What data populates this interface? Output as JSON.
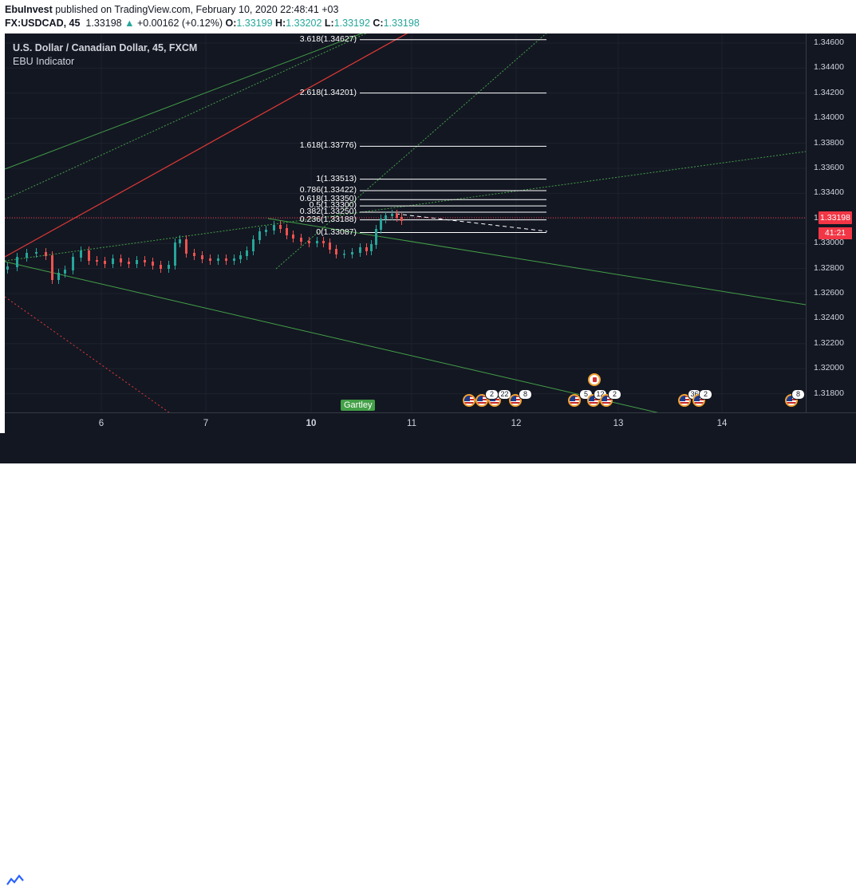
{
  "header": {
    "author": "EbuInvest",
    "published_text": "published on TradingView.com, February 10, 2020 22:48:41 +03",
    "symbol": "FX:USDCAD, 45",
    "last_price": "1.33198",
    "change_arrow": "▲",
    "change": "+0.00162 (+0.12%)",
    "open_label": "O:",
    "open": "1.33199",
    "high_label": "H:",
    "high": "1.33202",
    "low_label": "L:",
    "low": "1.33192",
    "close_label": "C:",
    "close": "1.33198"
  },
  "legend": {
    "title": "U.S. Dollar / Canadian Dollar, 45, FXCM",
    "indicator": "EBU Indicator"
  },
  "fib_levels": [
    {
      "label": "3.618(1.34627)",
      "value": 1.34627
    },
    {
      "label": "2.618(1.34201)",
      "value": 1.34201
    },
    {
      "label": "1.618(1.33776)",
      "value": 1.33776
    },
    {
      "label": "1(1.33513)",
      "value": 1.33513
    },
    {
      "label": "0.786(1.33422)",
      "value": 1.33422
    },
    {
      "label": "0.618(1.33350)",
      "value": 1.3335
    },
    {
      "label": "0.5(1.33300)",
      "value": 1.333
    },
    {
      "label": "0.382(1.33250)",
      "value": 1.3325
    },
    {
      "label": "0.236(1.33188)",
      "value": 1.33188
    },
    {
      "label": "0(1.33087)",
      "value": 1.33087
    }
  ],
  "price_axis": {
    "ticks": [
      "1.34600",
      "1.34400",
      "1.34200",
      "1.34000",
      "1.33800",
      "1.33600",
      "1.33400",
      "1.33200",
      "1.33000",
      "1.32800",
      "1.32600",
      "1.32400",
      "1.32200",
      "1.32000",
      "1.31800"
    ],
    "current_price": "1.33198",
    "countdown": "41:21"
  },
  "time_axis": {
    "ticks": [
      {
        "label": "6",
        "bold": false
      },
      {
        "label": "7",
        "bold": false
      },
      {
        "label": "10",
        "bold": true
      },
      {
        "label": "11",
        "bold": false
      },
      {
        "label": "12",
        "bold": false
      },
      {
        "label": "13",
        "bold": false
      },
      {
        "label": "14",
        "bold": false
      }
    ]
  },
  "pattern_label": "Gartley",
  "events": {
    "badges": [
      "2",
      "22",
      "8",
      "5",
      "12",
      "2",
      "36",
      "2",
      "8"
    ]
  },
  "footer": {
    "brand": "TradingView"
  },
  "colors": {
    "background": "#131722",
    "up_candle": "#26a69a",
    "down_candle": "#ef5350",
    "green_line": "#43a047",
    "red_line": "#e53935",
    "price_tag": "#f23645"
  }
}
